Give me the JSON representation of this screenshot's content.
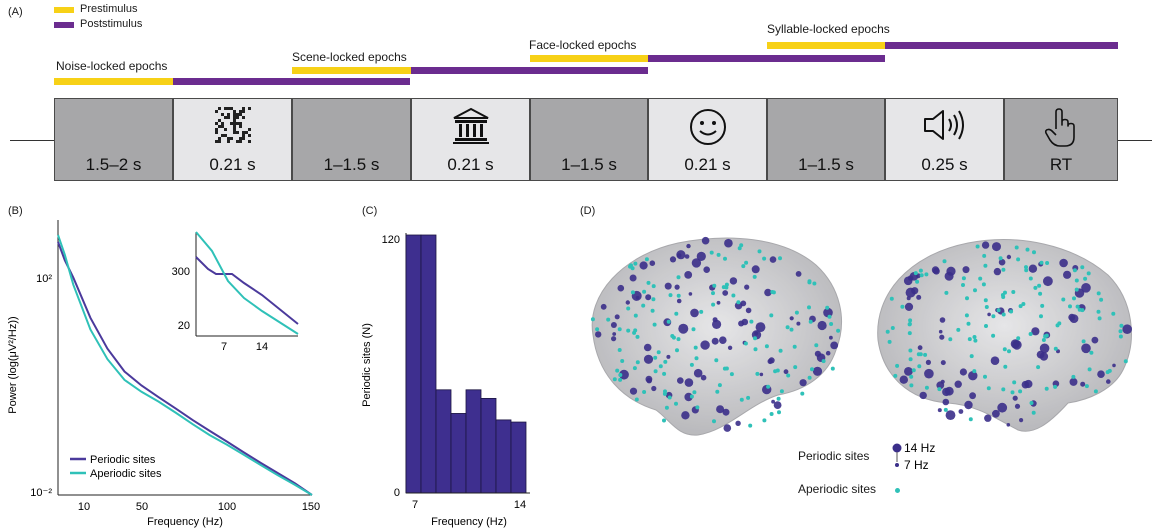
{
  "panelA": {
    "label": "(A)",
    "legend": [
      {
        "name": "Prestimulus",
        "color": "#f7d117"
      },
      {
        "name": "Poststimulus",
        "color": "#6b2c8f"
      }
    ],
    "epochs": [
      "Noise-locked epochs",
      "Scene-locked epochs",
      "Face-locked epochs",
      "Syllable-locked epochs"
    ],
    "trial_boxes": [
      {
        "duration": "1.5–2 s",
        "icon": "none",
        "shade": "dark"
      },
      {
        "duration": "0.21 s",
        "icon": "noise-pattern-icon",
        "shade": "light"
      },
      {
        "duration": "1–1.5 s",
        "icon": "none",
        "shade": "dark"
      },
      {
        "duration": "0.21 s",
        "icon": "building-icon",
        "shade": "light"
      },
      {
        "duration": "1–1.5 s",
        "icon": "none",
        "shade": "dark"
      },
      {
        "duration": "0.21 s",
        "icon": "smiley-face-icon",
        "shade": "light"
      },
      {
        "duration": "1–1.5 s",
        "icon": "none",
        "shade": "dark"
      },
      {
        "duration": "0.25 s",
        "icon": "speaker-icon",
        "shade": "light"
      },
      {
        "duration": "RT",
        "icon": "pointing-hand-icon",
        "shade": "dark"
      }
    ]
  },
  "panelB": {
    "label": "(B)",
    "ylabel": "Power (log(μV²/Hz))",
    "xlabel": "Frequency (Hz)",
    "yticks": [
      "10²",
      "10⁻²"
    ],
    "xticks": [
      "10",
      "50",
      "100",
      "150"
    ],
    "inset_yticks": [
      "300",
      "20"
    ],
    "inset_xticks": [
      "7",
      "14"
    ],
    "legend": [
      {
        "name": "Periodic sites",
        "color": "#4b3a9c"
      },
      {
        "name": "Aperiodic sites",
        "color": "#2fc1b8"
      }
    ]
  },
  "panelC": {
    "label": "(C)",
    "ylabel": "Periodic sites (N)",
    "xlabel": "Frequency (Hz)",
    "yticks": [
      "120",
      "0"
    ],
    "xticks": [
      "7",
      "14"
    ]
  },
  "panelD": {
    "label": "(D)",
    "legend_periodic": "Periodic sites",
    "legend_aperiodic": "Aperiodic sites",
    "size_high": "14 Hz",
    "size_low": "7 Hz"
  },
  "chart_data": [
    {
      "type": "line",
      "scale": "log-y",
      "x": [
        1,
        5,
        10,
        20,
        30,
        40,
        50,
        60,
        70,
        80,
        90,
        100,
        110,
        120,
        130,
        140,
        150
      ],
      "series": [
        {
          "name": "Periodic sites",
          "values": [
            250,
            120,
            60,
            12,
            3.5,
            1.4,
            0.8,
            0.5,
            0.32,
            0.2,
            0.13,
            0.085,
            0.055,
            0.036,
            0.024,
            0.016,
            0.01
          ]
        },
        {
          "name": "Aperiodic sites",
          "values": [
            330,
            150,
            45,
            7.5,
            2.3,
            1.0,
            0.62,
            0.42,
            0.27,
            0.17,
            0.11,
            0.075,
            0.05,
            0.033,
            0.022,
            0.015,
            0.01
          ]
        }
      ],
      "xlim": [
        1,
        150
      ]
    },
    {
      "type": "bar",
      "categories": [
        "7",
        "8",
        "9",
        "10",
        "11",
        "12",
        "13",
        "14"
      ],
      "values": [
        120,
        120,
        48,
        37,
        48,
        44,
        34,
        33
      ],
      "ylim": [
        0,
        120
      ]
    }
  ]
}
